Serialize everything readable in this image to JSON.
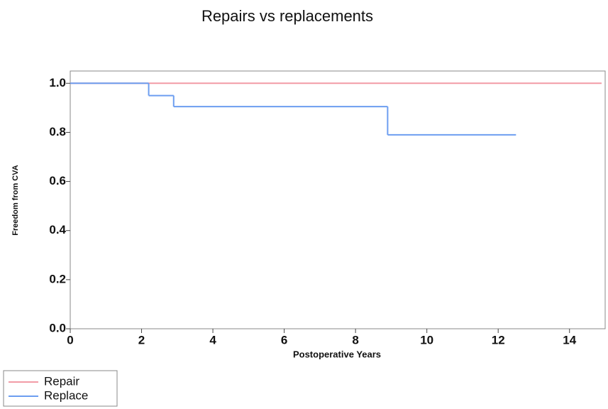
{
  "chart_data": {
    "type": "line",
    "step": "post",
    "title": "Repairs vs replacements",
    "x_label": "Postoperative Years",
    "y_label": "Freedom from CVA",
    "xlim": [
      0,
      15
    ],
    "ylim": [
      0,
      1.05
    ],
    "xticks": [
      0,
      2,
      4,
      6,
      8,
      10,
      12,
      14
    ],
    "yticks": [
      {
        "value": 0,
        "label": "0.0"
      },
      {
        "value": 0.2,
        "label": "0.2"
      },
      {
        "value": 0.4,
        "label": "0.4"
      },
      {
        "value": 0.6,
        "label": "0.6"
      },
      {
        "value": 0.8,
        "label": "0.8"
      },
      {
        "value": 1,
        "label": "1.0"
      }
    ],
    "series": [
      {
        "name": "Repair",
        "color": "#f29ba6",
        "x": [
          0,
          14.9
        ],
        "values": [
          1,
          1
        ]
      },
      {
        "name": "Replace",
        "color": "#6d9ef0",
        "x": [
          0,
          2.2,
          2.9,
          8.9,
          12.5
        ],
        "values": [
          1,
          0.95,
          0.905,
          0.79,
          0.79
        ]
      }
    ]
  }
}
